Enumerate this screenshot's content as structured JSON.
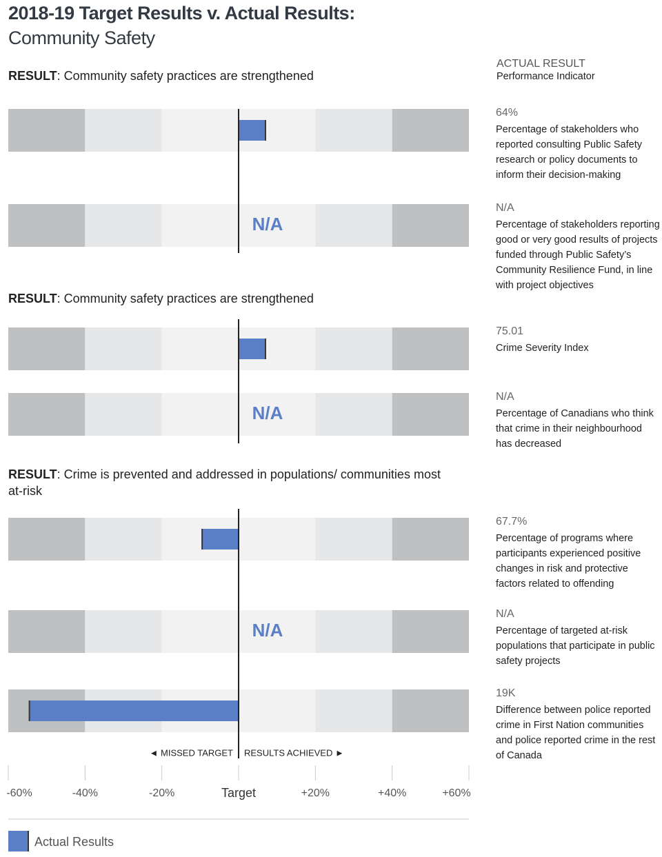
{
  "chart_data": {
    "type": "bullet",
    "title": "2018-19 Target Results v. Actual Results:",
    "subtitle": "Community Safety",
    "column_header": "ACTUAL RESULT",
    "column_subheader": "Performance Indicator",
    "xlim": [
      -60,
      60
    ],
    "xticks": [
      {
        "value": -60,
        "label": "-60%"
      },
      {
        "value": -40,
        "label": "-40%"
      },
      {
        "value": -20,
        "label": "-20%"
      },
      {
        "value": 0,
        "label": "Target"
      },
      {
        "value": 20,
        "label": "+20%"
      },
      {
        "value": 40,
        "label": "+40%"
      },
      {
        "value": 60,
        "label": "+60%"
      }
    ],
    "missed_label": "◄ MISSED TARGET",
    "achieved_label": "RESULTS ACHIEVED ►",
    "series": [
      {
        "name": "Actual Results",
        "color": "#5b7fc6"
      }
    ],
    "sections": [
      {
        "heading_bold": "RESULT",
        "heading": ": Community safety practices are strengthened",
        "rows": [
          {
            "value": 7,
            "result_text": "64%",
            "indicator": "Percentage of stakeholders who reported consulting Public Safety research or policy documents to inform their decision-making"
          },
          {
            "value": null,
            "result_text": "N/A",
            "indicator": "Percentage of stakeholders reporting good or very good results of projects funded through Public Safety’s Community Resilience Fund, in line with project objectives"
          }
        ]
      },
      {
        "heading_bold": "RESULT",
        "heading": ": Community safety practices are strengthened",
        "rows": [
          {
            "value": 7,
            "result_text": "75.01",
            "indicator": "Crime Severity Index"
          },
          {
            "value": null,
            "result_text": "N/A",
            "indicator": "Percentage of Canadians who think that crime in their neighbourhood has decreased"
          }
        ]
      },
      {
        "heading_bold": "RESULT",
        "heading": ": Crime is prevented and addressed in populations/ communities most at-risk",
        "rows": [
          {
            "value": -9.5,
            "result_text": "67.7%",
            "indicator": "Percentage of programs where participants experienced positive changes in risk and protective factors related to offending"
          },
          {
            "value": null,
            "result_text": "N/A",
            "indicator": "Percentage of targeted at-risk populations that participate in public safety projects"
          },
          {
            "value": -54.5,
            "result_text": "19K",
            "indicator": "Difference between police reported crime in First Nation communities and police reported crime in the rest of Canada"
          }
        ]
      }
    ]
  }
}
